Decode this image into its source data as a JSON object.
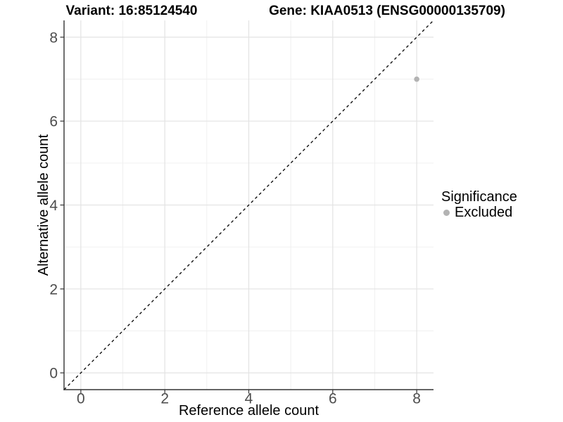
{
  "chart_data": {
    "type": "scatter",
    "titles": {
      "left": "Variant: 16:85124540",
      "right": "Gene: KIAA0513 (ENSG00000135709)"
    },
    "xlabel": "Reference allele count",
    "ylabel": "Alternative allele count",
    "xlim": [
      -0.4,
      8.4
    ],
    "ylim": [
      -0.4,
      8.4
    ],
    "x_major_ticks": [
      0,
      2,
      4,
      6,
      8
    ],
    "y_major_ticks": [
      0,
      2,
      4,
      6,
      8
    ],
    "x_minor_ticks": [
      1,
      3,
      5,
      7
    ],
    "y_minor_ticks": [
      1,
      3,
      5,
      7
    ],
    "grid": true,
    "points": [
      {
        "x": 8,
        "y": 7,
        "series": "Excluded",
        "color": "#b3b3b3",
        "radius": 3.8
      }
    ],
    "reference_line": {
      "style": "dashed",
      "x1": -0.4,
      "y1": -0.4,
      "x2": 8.4,
      "y2": 8.4,
      "color": "#000000"
    },
    "legend": {
      "title": "Significance",
      "position": "right",
      "items": [
        {
          "label": "Excluded",
          "color": "#b3b3b3"
        }
      ]
    },
    "colors": {
      "background": "#ffffff",
      "grid_major": "#e3e3e3",
      "grid_minor": "#f0f0f0",
      "axis_line": "#333333",
      "tick_label": "#4d4d4d",
      "title_text": "#000000"
    }
  }
}
